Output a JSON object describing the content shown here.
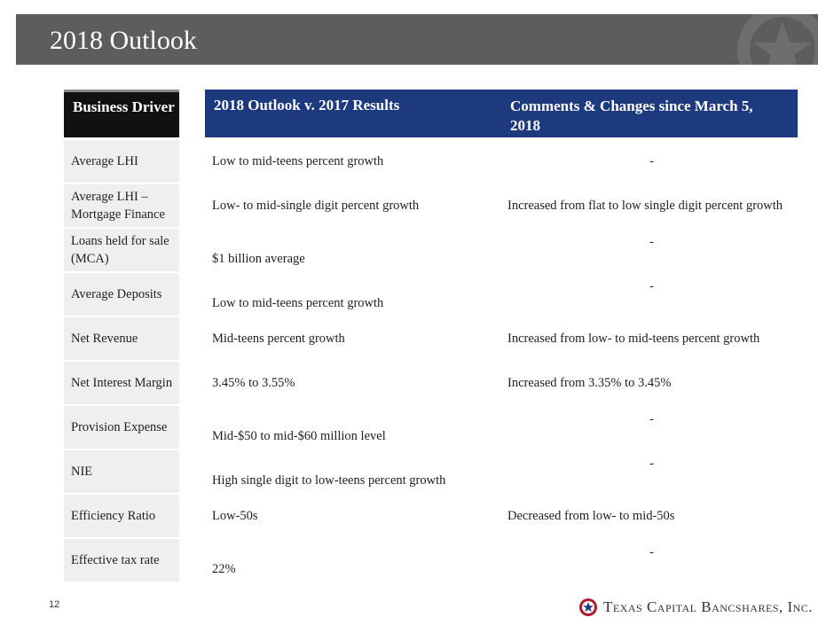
{
  "slide": {
    "title": "2018 Outlook",
    "page_number": "12"
  },
  "table": {
    "headers": {
      "driver": "Business Driver",
      "outlook": "2018 Outlook v. 2017 Results",
      "comments": "Comments & Changes since March 5, 2018"
    },
    "rows": [
      {
        "driver": "Average  LHI",
        "outlook": "Low to mid-teens percent growth",
        "comment": "-"
      },
      {
        "driver": "Average LHI – Mortgage Finance",
        "outlook": "Low- to mid-single digit percent growth",
        "comment": "Increased from flat to low single digit percent growth"
      },
      {
        "driver": "Loans held for sale (MCA)",
        "outlook": "$1 billion average",
        "comment": "-"
      },
      {
        "driver": "Average Deposits",
        "outlook": "Low to mid-teens percent growth",
        "comment": "-"
      },
      {
        "driver": "Net Revenue",
        "outlook": "Mid-teens percent growth",
        "comment": "Increased from low- to mid-teens percent growth"
      },
      {
        "driver": "Net Interest Margin",
        "outlook": "3.45% to 3.55%",
        "comment": "Increased from 3.35% to 3.45%"
      },
      {
        "driver": "Provision Expense",
        "outlook": "Mid-$50 to mid-$60 million level",
        "comment": "-"
      },
      {
        "driver": "NIE",
        "outlook": "High single digit to low-teens percent growth",
        "comment": "-"
      },
      {
        "driver": "Efficiency Ratio",
        "outlook": "Low-50s",
        "comment": "Decreased from low- to mid-50s"
      },
      {
        "driver": "Effective tax rate",
        "outlook": "22%",
        "comment": "-"
      }
    ]
  },
  "footer": {
    "company_name": "Texas Capital Bancshares, Inc.",
    "logo_icon": "star-emblem-icon"
  },
  "colors": {
    "title_bar": "#5d5d5d",
    "header_dark": "#111111",
    "header_blue": "#1d3a7e",
    "driver_cell": "#efefef"
  }
}
